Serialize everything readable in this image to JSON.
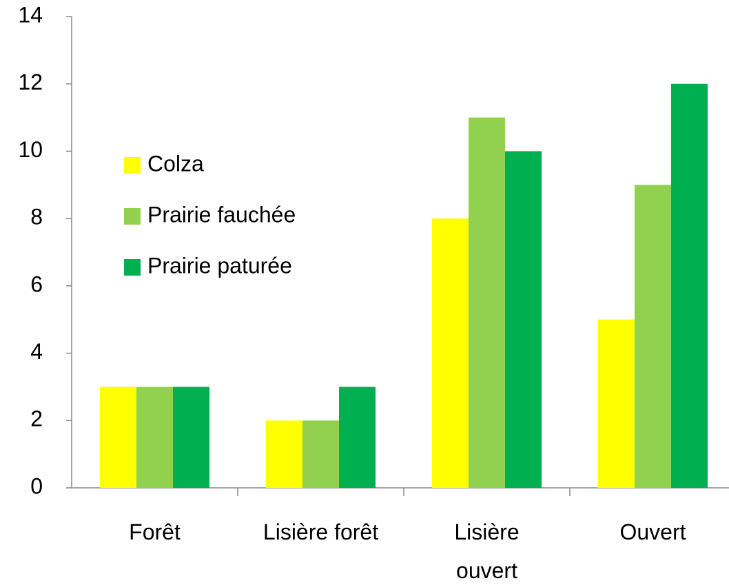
{
  "chart_data": {
    "type": "bar",
    "categories": [
      "Forêt",
      "Lisière forêt",
      "Lisière ouvert",
      "Ouvert"
    ],
    "series": [
      {
        "name": "Colza",
        "color": "#ffff00",
        "values": [
          3,
          2,
          8,
          5
        ]
      },
      {
        "name": "Prairie fauchée",
        "color": "#92d050",
        "values": [
          3,
          2,
          11,
          9
        ]
      },
      {
        "name": "Prairie paturée",
        "color": "#00b050",
        "values": [
          3,
          3,
          10,
          12
        ]
      }
    ],
    "ylim": [
      0,
      14
    ],
    "yticks": [
      0,
      2,
      4,
      6,
      8,
      10,
      12,
      14
    ],
    "grid": false,
    "legend": "left"
  }
}
